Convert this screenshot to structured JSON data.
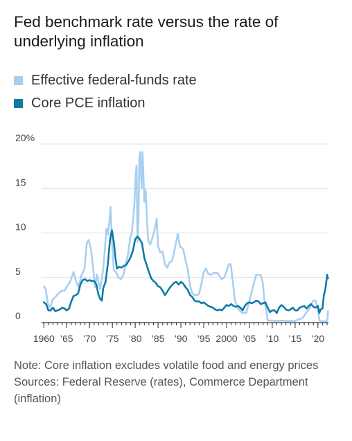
{
  "title": "Fed benchmark rate versus the rate of underlying inflation",
  "note": "Note: Core inflation excludes volatile food and energy prices",
  "sources": "Sources: Federal Reserve (rates), Commerce Department (inflation)",
  "colors": {
    "fedfunds": "#a8cff0",
    "corepce": "#0e7aa6",
    "grid": "#dcdcdc",
    "axis": "#333333"
  },
  "chart_data": {
    "type": "line",
    "xlim": [
      1959.5,
      2022.3
    ],
    "ylim": [
      0,
      20
    ],
    "y_ticks": [
      0,
      5,
      10,
      15,
      20
    ],
    "y_tick_labels": [
      "0",
      "5",
      "10",
      "15",
      "20%"
    ],
    "x_ticks": [
      1960,
      1965,
      1970,
      1975,
      1980,
      1985,
      1990,
      1995,
      2000,
      2005,
      2010,
      2015,
      2020
    ],
    "x_tick_labels": [
      "1960",
      "’65",
      "’70",
      "’75",
      "’80",
      "’85",
      "’90",
      "’95",
      "2000",
      "’05",
      "’10",
      "’15",
      "’20"
    ],
    "legend_position": "top-left",
    "grid": true,
    "series": [
      {
        "name": "Effective federal-funds rate",
        "color_key": "fedfunds",
        "points": [
          [
            1960.0,
            4.0
          ],
          [
            1960.4,
            3.7
          ],
          [
            1960.9,
            2.0
          ],
          [
            1961.4,
            1.6
          ],
          [
            1961.9,
            2.5
          ],
          [
            1962.5,
            2.8
          ],
          [
            1963.2,
            3.2
          ],
          [
            1963.9,
            3.5
          ],
          [
            1964.5,
            3.5
          ],
          [
            1965.2,
            4.1
          ],
          [
            1965.8,
            4.6
          ],
          [
            1966.5,
            5.6
          ],
          [
            1967.1,
            4.5
          ],
          [
            1967.6,
            3.9
          ],
          [
            1968.2,
            5.2
          ],
          [
            1968.9,
            6.0
          ],
          [
            1969.4,
            8.9
          ],
          [
            1969.8,
            9.2
          ],
          [
            1970.3,
            8.2
          ],
          [
            1970.8,
            6.0
          ],
          [
            1971.2,
            3.9
          ],
          [
            1971.6,
            5.3
          ],
          [
            1971.9,
            4.6
          ],
          [
            1972.3,
            3.7
          ],
          [
            1972.7,
            4.9
          ],
          [
            1973.0,
            6.0
          ],
          [
            1973.4,
            8.4
          ],
          [
            1973.7,
            10.5
          ],
          [
            1974.0,
            9.8
          ],
          [
            1974.4,
            11.5
          ],
          [
            1974.6,
            12.9
          ],
          [
            1974.9,
            9.4
          ],
          [
            1975.3,
            5.8
          ],
          [
            1975.8,
            5.6
          ],
          [
            1976.3,
            5.0
          ],
          [
            1976.9,
            4.8
          ],
          [
            1977.5,
            5.4
          ],
          [
            1977.9,
            6.5
          ],
          [
            1978.4,
            7.5
          ],
          [
            1978.9,
            9.4
          ],
          [
            1979.3,
            10.2
          ],
          [
            1979.8,
            13.0
          ],
          [
            1980.1,
            16.5
          ],
          [
            1980.3,
            17.6
          ],
          [
            1980.5,
            9.0
          ],
          [
            1980.7,
            11.5
          ],
          [
            1980.9,
            18.5
          ],
          [
            1981.1,
            19.1
          ],
          [
            1981.4,
            15.0
          ],
          [
            1981.6,
            19.1
          ],
          [
            1981.8,
            16.5
          ],
          [
            1982.0,
            13.5
          ],
          [
            1982.3,
            14.8
          ],
          [
            1982.6,
            11.0
          ],
          [
            1982.9,
            9.0
          ],
          [
            1983.3,
            8.7
          ],
          [
            1983.8,
            9.5
          ],
          [
            1984.3,
            10.5
          ],
          [
            1984.7,
            11.6
          ],
          [
            1985.0,
            8.5
          ],
          [
            1985.5,
            7.8
          ],
          [
            1986.0,
            7.9
          ],
          [
            1986.5,
            6.5
          ],
          [
            1987.0,
            6.1
          ],
          [
            1987.5,
            6.7
          ],
          [
            1988.0,
            6.8
          ],
          [
            1988.5,
            7.8
          ],
          [
            1989.0,
            9.1
          ],
          [
            1989.3,
            9.9
          ],
          [
            1989.8,
            8.5
          ],
          [
            1990.5,
            8.2
          ],
          [
            1991.0,
            6.9
          ],
          [
            1991.5,
            5.9
          ],
          [
            1992.0,
            4.1
          ],
          [
            1992.5,
            3.2
          ],
          [
            1993.0,
            3.0
          ],
          [
            1993.6,
            3.0
          ],
          [
            1994.0,
            3.2
          ],
          [
            1994.5,
            4.3
          ],
          [
            1995.0,
            5.6
          ],
          [
            1995.5,
            6.0
          ],
          [
            1996.0,
            5.4
          ],
          [
            1996.5,
            5.3
          ],
          [
            1997.2,
            5.5
          ],
          [
            1998.0,
            5.5
          ],
          [
            1998.9,
            4.8
          ],
          [
            1999.5,
            5.0
          ],
          [
            2000.0,
            5.7
          ],
          [
            2000.5,
            6.5
          ],
          [
            2000.9,
            6.5
          ],
          [
            2001.3,
            4.8
          ],
          [
            2001.8,
            2.5
          ],
          [
            2002.3,
            1.7
          ],
          [
            2003.0,
            1.2
          ],
          [
            2003.6,
            1.0
          ],
          [
            2004.3,
            1.0
          ],
          [
            2004.7,
            1.8
          ],
          [
            2005.3,
            3.0
          ],
          [
            2005.9,
            4.2
          ],
          [
            2006.5,
            5.3
          ],
          [
            2007.5,
            5.25
          ],
          [
            2007.9,
            4.5
          ],
          [
            2008.3,
            2.3
          ],
          [
            2008.8,
            1.0
          ],
          [
            2009.0,
            0.15
          ],
          [
            2010.0,
            0.15
          ],
          [
            2011.0,
            0.1
          ],
          [
            2012.0,
            0.15
          ],
          [
            2013.0,
            0.1
          ],
          [
            2014.0,
            0.1
          ],
          [
            2015.0,
            0.12
          ],
          [
            2015.9,
            0.3
          ],
          [
            2016.5,
            0.4
          ],
          [
            2017.0,
            0.7
          ],
          [
            2017.5,
            1.1
          ],
          [
            2018.0,
            1.4
          ],
          [
            2018.5,
            1.9
          ],
          [
            2019.0,
            2.4
          ],
          [
            2019.5,
            2.4
          ],
          [
            2019.9,
            1.6
          ],
          [
            2020.2,
            0.6
          ],
          [
            2020.4,
            0.05
          ],
          [
            2021.0,
            0.08
          ],
          [
            2021.9,
            0.08
          ],
          [
            2022.1,
            0.3
          ],
          [
            2022.2,
            1.2
          ]
        ]
      },
      {
        "name": "Core PCE inflation",
        "color_key": "corepce",
        "points": [
          [
            1960.0,
            2.2
          ],
          [
            1960.5,
            2.0
          ],
          [
            1961.0,
            1.3
          ],
          [
            1961.5,
            1.3
          ],
          [
            1962.0,
            1.6
          ],
          [
            1962.5,
            1.2
          ],
          [
            1963.0,
            1.3
          ],
          [
            1963.5,
            1.4
          ],
          [
            1964.0,
            1.6
          ],
          [
            1964.5,
            1.5
          ],
          [
            1965.0,
            1.3
          ],
          [
            1965.5,
            1.5
          ],
          [
            1966.0,
            2.3
          ],
          [
            1966.5,
            2.9
          ],
          [
            1967.0,
            3.0
          ],
          [
            1967.5,
            3.2
          ],
          [
            1968.0,
            4.2
          ],
          [
            1968.5,
            4.7
          ],
          [
            1969.0,
            4.8
          ],
          [
            1969.5,
            4.6
          ],
          [
            1970.0,
            4.7
          ],
          [
            1970.5,
            4.6
          ],
          [
            1971.0,
            4.6
          ],
          [
            1971.5,
            4.2
          ],
          [
            1971.9,
            3.2
          ],
          [
            1972.3,
            2.6
          ],
          [
            1972.7,
            2.4
          ],
          [
            1973.0,
            3.8
          ],
          [
            1973.5,
            4.5
          ],
          [
            1974.0,
            6.5
          ],
          [
            1974.5,
            9.3
          ],
          [
            1974.9,
            10.3
          ],
          [
            1975.3,
            9.0
          ],
          [
            1975.7,
            7.1
          ],
          [
            1976.0,
            6.0
          ],
          [
            1976.5,
            6.2
          ],
          [
            1977.0,
            6.1
          ],
          [
            1977.5,
            6.3
          ],
          [
            1978.0,
            6.4
          ],
          [
            1978.5,
            6.8
          ],
          [
            1979.0,
            7.3
          ],
          [
            1979.5,
            8.0
          ],
          [
            1980.0,
            9.3
          ],
          [
            1980.5,
            9.6
          ],
          [
            1981.0,
            9.3
          ],
          [
            1981.5,
            8.8
          ],
          [
            1982.0,
            7.2
          ],
          [
            1982.5,
            6.4
          ],
          [
            1983.0,
            5.6
          ],
          [
            1983.5,
            4.9
          ],
          [
            1984.0,
            4.6
          ],
          [
            1984.5,
            4.4
          ],
          [
            1985.0,
            4.0
          ],
          [
            1985.5,
            3.9
          ],
          [
            1986.0,
            3.5
          ],
          [
            1986.5,
            3.0
          ],
          [
            1987.0,
            3.4
          ],
          [
            1987.5,
            3.8
          ],
          [
            1988.0,
            4.1
          ],
          [
            1988.5,
            4.4
          ],
          [
            1989.0,
            4.5
          ],
          [
            1989.5,
            4.2
          ],
          [
            1990.0,
            4.5
          ],
          [
            1990.5,
            4.3
          ],
          [
            1991.0,
            3.9
          ],
          [
            1991.5,
            3.6
          ],
          [
            1992.0,
            3.0
          ],
          [
            1992.5,
            2.8
          ],
          [
            1993.0,
            2.4
          ],
          [
            1993.5,
            2.3
          ],
          [
            1994.0,
            2.3
          ],
          [
            1994.5,
            2.1
          ],
          [
            1995.0,
            2.2
          ],
          [
            1995.5,
            2.0
          ],
          [
            1996.0,
            1.8
          ],
          [
            1996.5,
            1.7
          ],
          [
            1997.0,
            1.6
          ],
          [
            1997.5,
            1.4
          ],
          [
            1998.0,
            1.3
          ],
          [
            1998.5,
            1.4
          ],
          [
            1999.0,
            1.3
          ],
          [
            1999.5,
            1.6
          ],
          [
            2000.0,
            1.9
          ],
          [
            2000.5,
            1.8
          ],
          [
            2001.0,
            2.0
          ],
          [
            2001.5,
            1.8
          ],
          [
            2002.0,
            1.7
          ],
          [
            2002.5,
            1.8
          ],
          [
            2003.0,
            1.6
          ],
          [
            2003.5,
            1.3
          ],
          [
            2004.0,
            1.8
          ],
          [
            2004.5,
            2.1
          ],
          [
            2005.0,
            2.2
          ],
          [
            2005.5,
            2.1
          ],
          [
            2006.0,
            2.2
          ],
          [
            2006.5,
            2.4
          ],
          [
            2007.0,
            2.3
          ],
          [
            2007.5,
            2.0
          ],
          [
            2008.0,
            2.1
          ],
          [
            2008.5,
            2.2
          ],
          [
            2009.0,
            1.6
          ],
          [
            2009.5,
            1.1
          ],
          [
            2010.0,
            1.3
          ],
          [
            2010.5,
            1.3
          ],
          [
            2011.0,
            1.0
          ],
          [
            2011.5,
            1.6
          ],
          [
            2012.0,
            1.9
          ],
          [
            2012.5,
            1.7
          ],
          [
            2013.0,
            1.4
          ],
          [
            2013.5,
            1.3
          ],
          [
            2014.0,
            1.4
          ],
          [
            2014.5,
            1.6
          ],
          [
            2015.0,
            1.3
          ],
          [
            2015.5,
            1.3
          ],
          [
            2016.0,
            1.6
          ],
          [
            2016.5,
            1.7
          ],
          [
            2017.0,
            1.8
          ],
          [
            2017.5,
            1.5
          ],
          [
            2018.0,
            1.8
          ],
          [
            2018.5,
            2.0
          ],
          [
            2019.0,
            1.7
          ],
          [
            2019.5,
            1.6
          ],
          [
            2020.0,
            1.8
          ],
          [
            2020.3,
            1.0
          ],
          [
            2020.6,
            1.4
          ],
          [
            2021.0,
            1.5
          ],
          [
            2021.3,
            3.0
          ],
          [
            2021.6,
            3.6
          ],
          [
            2021.9,
            4.8
          ],
          [
            2022.0,
            5.3
          ],
          [
            2022.2,
            4.9
          ]
        ]
      }
    ]
  }
}
